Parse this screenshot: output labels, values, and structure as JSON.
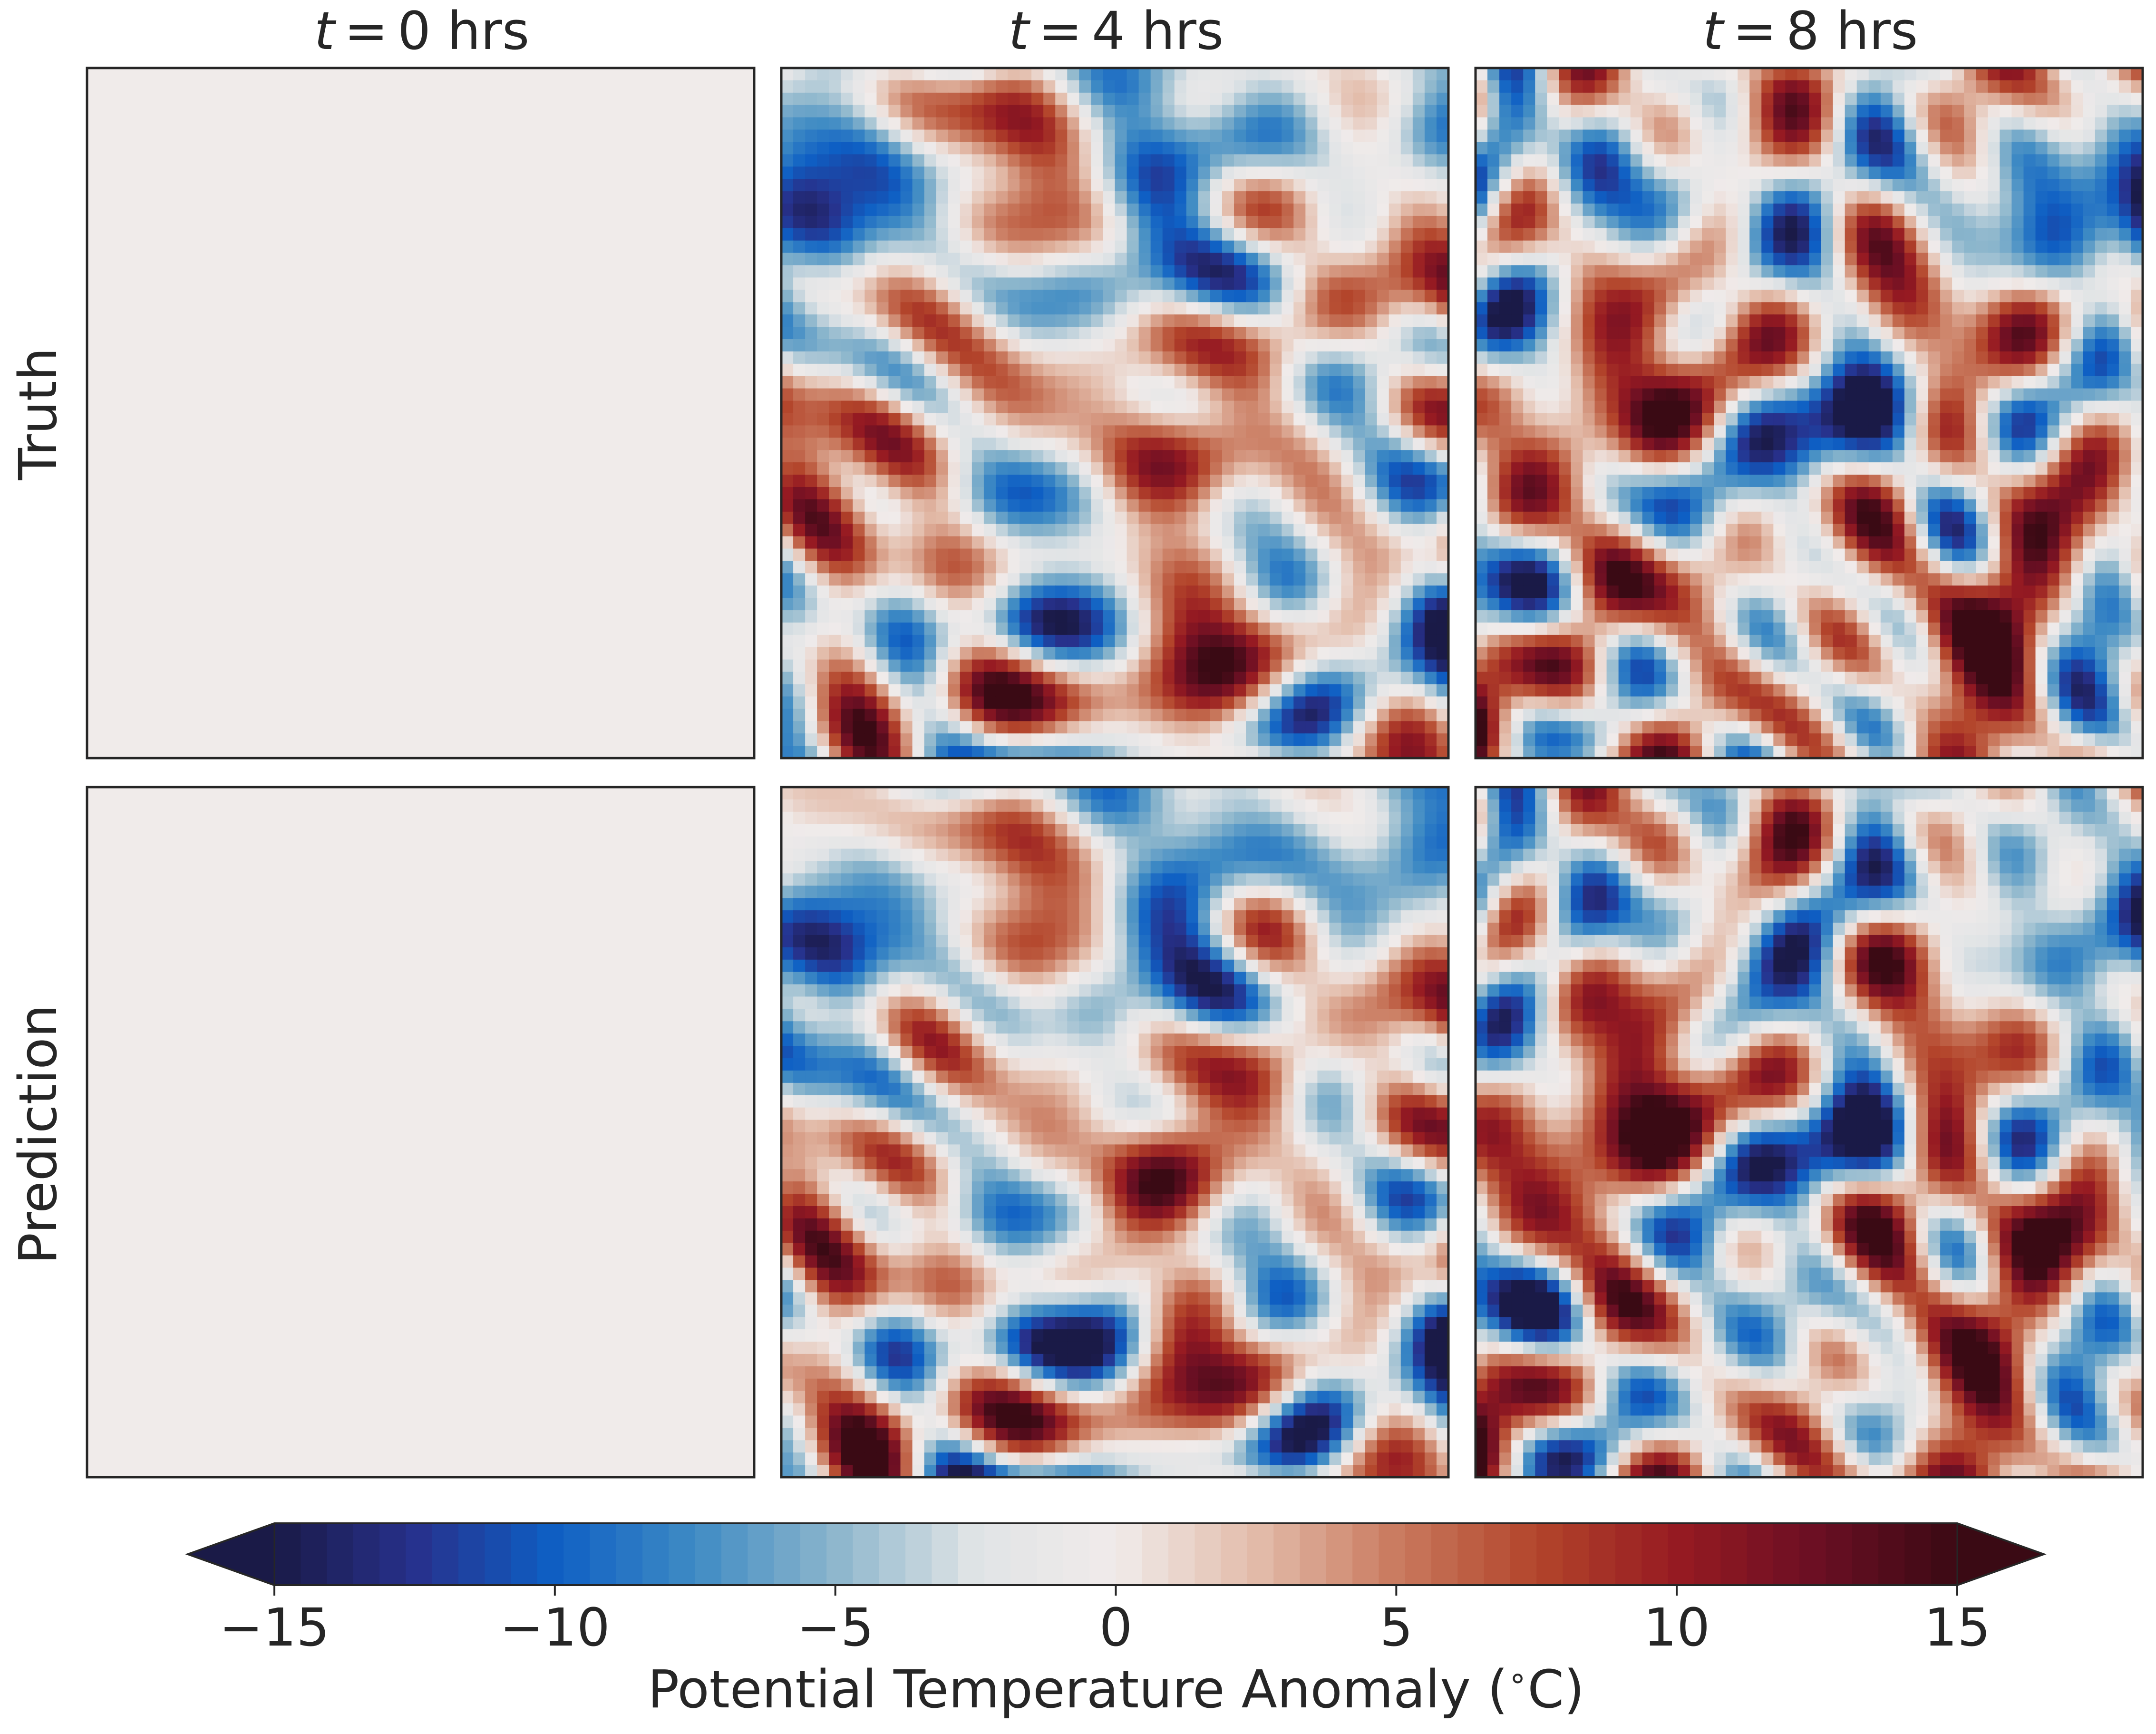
{
  "chart_data": {
    "type": "heatmap",
    "columns": [
      {
        "prefix": "t",
        "operator": "=",
        "value": "0 hrs"
      },
      {
        "prefix": "t",
        "operator": "=",
        "value": "4 hrs"
      },
      {
        "prefix": "t",
        "operator": "=",
        "value": "8 hrs"
      }
    ],
    "rows": [
      "Truth",
      "Prediction"
    ],
    "panels": [
      {
        "row": "Truth",
        "time_hrs": 0,
        "field": "uniform",
        "value": 0
      },
      {
        "row": "Truth",
        "time_hrs": 4,
        "field": "turbulent",
        "amplitude": 10
      },
      {
        "row": "Truth",
        "time_hrs": 8,
        "field": "turbulent",
        "amplitude": 14
      },
      {
        "row": "Prediction",
        "time_hrs": 0,
        "field": "uniform",
        "value": 0
      },
      {
        "row": "Prediction",
        "time_hrs": 4,
        "field": "turbulent",
        "amplitude": 10
      },
      {
        "row": "Prediction",
        "time_hrs": 8,
        "field": "turbulent",
        "amplitude": 13
      }
    ],
    "colorbar": {
      "label": "Potential Temperature Anomaly ($^\\circ$C)",
      "label_text": "Potential Temperature Anomaly (",
      "label_unit": "C)",
      "degree_symbol": "∘",
      "vmin": -15,
      "vmax": 15,
      "extend": "both",
      "ticks": [
        -15,
        -10,
        -5,
        0,
        5,
        10,
        15
      ],
      "tick_labels": [
        "−15",
        "−10",
        "−5",
        "0",
        "5",
        "10",
        "15"
      ],
      "colormap": "diverging blue-white-red",
      "colors": [
        "#1a1a47",
        "#27318c",
        "#0e5fc4",
        "#3f8bc4",
        "#8cb6cc",
        "#e1e4e6",
        "#f0ebea",
        "#e3bcaa",
        "#c97a5f",
        "#b3452b",
        "#961a22",
        "#6b0f23",
        "#3a0a14"
      ]
    },
    "grid": false,
    "axes_ticks": false
  }
}
